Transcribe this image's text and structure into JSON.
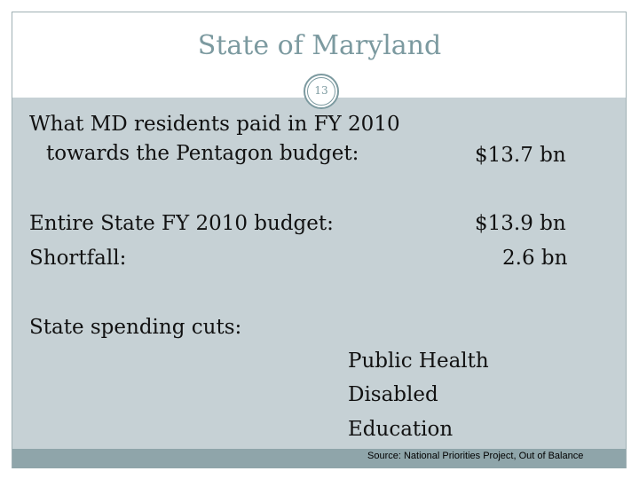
{
  "slide": {
    "title": "State of Maryland",
    "number": "13"
  },
  "rows": {
    "pentagon_label_line1": "What MD residents paid in FY 2010",
    "pentagon_label_line2": "towards the Pentagon budget:",
    "pentagon_value": "$13.7 bn",
    "budget_label": "Entire State FY 2010 budget:",
    "budget_value": "$13.9 bn",
    "shortfall_label": "Shortfall:",
    "shortfall_value": "2.6 bn"
  },
  "cuts": {
    "heading": "State spending cuts:",
    "items": [
      "Public Health",
      "Disabled",
      "Education"
    ]
  },
  "footer": {
    "source": "Source: National Priorities Project, Out of Balance"
  },
  "colors": {
    "title": "#7c9aa0",
    "content_bg": "#c6d1d5",
    "footer_bg": "#8fa5aa"
  }
}
